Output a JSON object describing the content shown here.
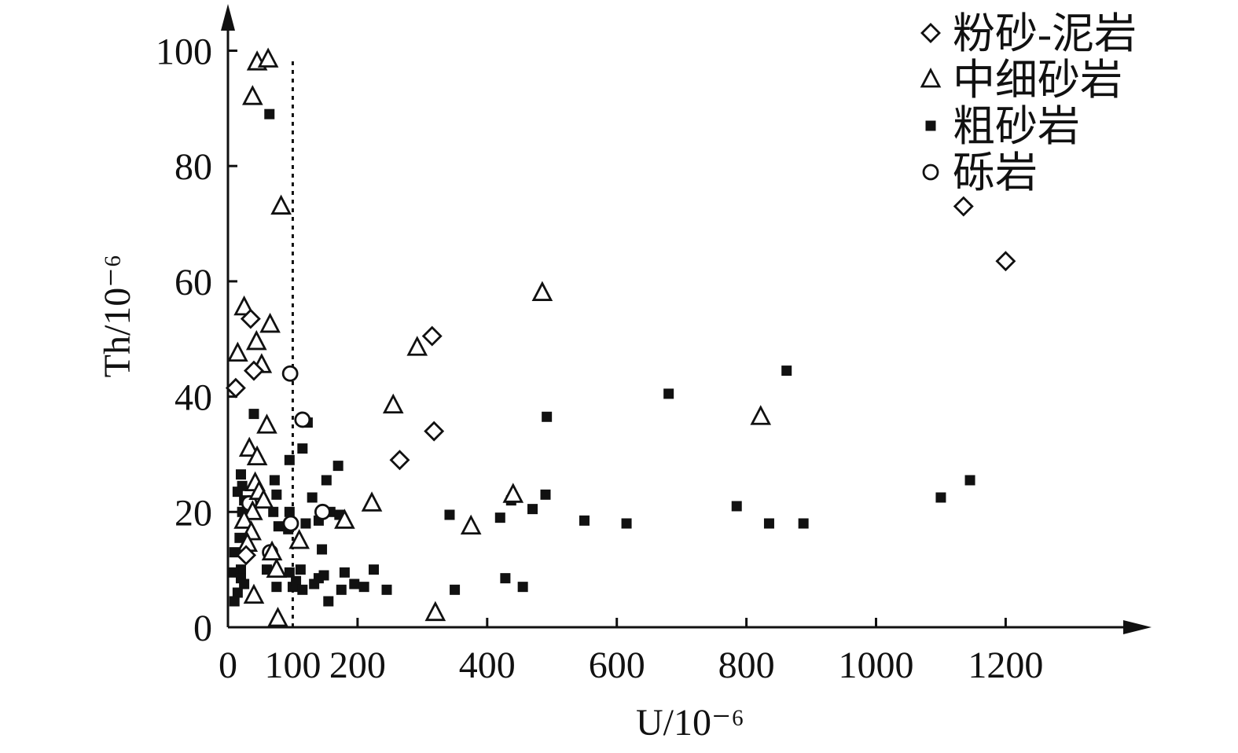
{
  "chart_data": {
    "type": "scatter",
    "xlabel": "U/10⁻⁶",
    "ylabel": "Th/10⁻⁶",
    "xlim": [
      0,
      1400
    ],
    "ylim": [
      0,
      100
    ],
    "x_ticks": [
      0,
      100,
      200,
      400,
      600,
      800,
      1000,
      1200
    ],
    "y_ticks": [
      0,
      20,
      40,
      60,
      80,
      100
    ],
    "threshold_x": 100,
    "grid": false,
    "legend_position": "top-right",
    "series": [
      {
        "name": "粉砂-泥岩",
        "marker": "diamond",
        "points": [
          [
            12,
            41.5
          ],
          [
            35,
            53.5
          ],
          [
            40,
            44.5
          ],
          [
            28,
            12.5
          ],
          [
            315,
            50.5
          ],
          [
            318,
            34
          ],
          [
            265,
            29
          ],
          [
            1135,
            73
          ],
          [
            1200,
            63.5
          ]
        ]
      },
      {
        "name": "中细砂岩",
        "marker": "triangle",
        "points": [
          [
            45,
            98
          ],
          [
            62,
            98.5
          ],
          [
            38,
            92
          ],
          [
            82,
            73
          ],
          [
            25,
            55.5
          ],
          [
            65,
            52.5
          ],
          [
            15,
            47.5
          ],
          [
            44,
            49.5
          ],
          [
            52,
            45.5
          ],
          [
            60,
            35
          ],
          [
            33,
            31
          ],
          [
            45,
            29.5
          ],
          [
            42,
            25
          ],
          [
            48,
            23.5
          ],
          [
            55,
            22
          ],
          [
            38,
            20
          ],
          [
            25,
            18.5
          ],
          [
            36,
            16.5
          ],
          [
            30,
            14.5
          ],
          [
            68,
            13
          ],
          [
            75,
            10
          ],
          [
            40,
            5.5
          ],
          [
            77,
            1.5
          ],
          [
            110,
            15
          ],
          [
            180,
            18.5
          ],
          [
            222,
            21.5
          ],
          [
            255,
            38.5
          ],
          [
            292,
            48.5
          ],
          [
            320,
            2.5
          ],
          [
            375,
            17.5
          ],
          [
            440,
            23
          ],
          [
            485,
            58
          ],
          [
            822,
            36.5
          ]
        ]
      },
      {
        "name": "粗砂岩",
        "marker": "square",
        "points": [
          [
            64,
            89
          ],
          [
            40,
            37
          ],
          [
            20,
            26.5
          ],
          [
            22,
            24.5
          ],
          [
            15,
            23.5
          ],
          [
            25,
            22
          ],
          [
            22,
            20
          ],
          [
            18,
            15.5
          ],
          [
            10,
            13
          ],
          [
            20,
            10
          ],
          [
            8,
            9.5
          ],
          [
            20,
            8.5
          ],
          [
            25,
            7.5
          ],
          [
            15,
            6
          ],
          [
            10,
            4.5
          ],
          [
            75,
            23
          ],
          [
            72,
            25.5
          ],
          [
            78,
            17.5
          ],
          [
            60,
            10
          ],
          [
            75,
            7
          ],
          [
            70,
            20
          ],
          [
            95,
            29
          ],
          [
            95,
            20
          ],
          [
            93,
            17
          ],
          [
            95,
            9.5
          ],
          [
            100,
            7
          ],
          [
            105,
            8
          ],
          [
            112,
            10
          ],
          [
            115,
            6.5
          ],
          [
            115,
            31
          ],
          [
            123,
            35.5
          ],
          [
            120,
            18
          ],
          [
            130,
            22.5
          ],
          [
            133,
            7.5
          ],
          [
            140,
            18.5
          ],
          [
            140,
            8.5
          ],
          [
            145,
            13.5
          ],
          [
            148,
            9
          ],
          [
            152,
            25.5
          ],
          [
            158,
            20
          ],
          [
            155,
            4.5
          ],
          [
            170,
            28
          ],
          [
            172,
            19.5
          ],
          [
            175,
            6.5
          ],
          [
            180,
            9.5
          ],
          [
            195,
            7.5
          ],
          [
            210,
            7
          ],
          [
            225,
            10
          ],
          [
            245,
            6.5
          ],
          [
            342,
            19.5
          ],
          [
            350,
            6.5
          ],
          [
            420,
            19
          ],
          [
            428,
            8.5
          ],
          [
            437,
            22
          ],
          [
            455,
            7
          ],
          [
            470,
            20.5
          ],
          [
            490,
            23
          ],
          [
            492,
            36.5
          ],
          [
            550,
            18.5
          ],
          [
            615,
            18
          ],
          [
            680,
            40.5
          ],
          [
            785,
            21
          ],
          [
            835,
            18
          ],
          [
            862,
            44.5
          ],
          [
            888,
            18
          ],
          [
            1100,
            22.5
          ],
          [
            1145,
            25.5
          ]
        ]
      },
      {
        "name": "砾岩",
        "marker": "circle",
        "points": [
          [
            96,
            44
          ],
          [
            115,
            36
          ],
          [
            33,
            21.5
          ],
          [
            65,
            13
          ],
          [
            97,
            18
          ],
          [
            146,
            20
          ]
        ]
      }
    ]
  }
}
